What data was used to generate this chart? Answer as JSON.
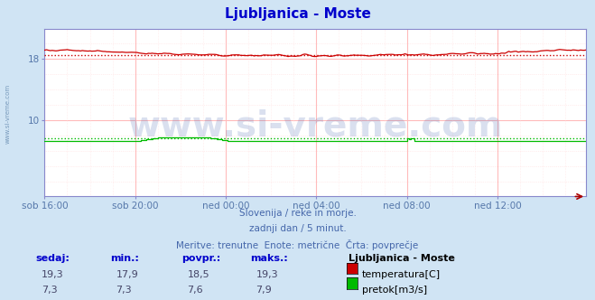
{
  "title": "Ljubljanica - Moste",
  "background_color": "#d0e4f4",
  "plot_bg_color": "#ffffff",
  "x_labels": [
    "sob 16:00",
    "sob 20:00",
    "ned 00:00",
    "ned 04:00",
    "ned 08:00",
    "ned 12:00"
  ],
  "x_tick_positions": [
    0,
    48,
    96,
    144,
    192,
    240
  ],
  "n_points": 288,
  "ylim_bottom": 0,
  "ylim_top": 22,
  "ytick_vals": [
    10,
    18
  ],
  "temp_min": 17.9,
  "temp_max": 19.3,
  "temp_avg": 18.5,
  "temp_current": 19.3,
  "flow_min": 7.3,
  "flow_max": 7.9,
  "flow_avg": 7.6,
  "flow_current": 7.3,
  "temp_color": "#cc0000",
  "flow_color": "#00bb00",
  "dotted_temp_color": "#cc0000",
  "dotted_flow_color": "#00bb00",
  "grid_major_color": "#ffbbbb",
  "grid_minor_color": "#ffdddd",
  "spine_color": "#8888cc",
  "watermark_text": "www.si-vreme.com",
  "watermark_color": "#3355aa",
  "watermark_alpha": 0.18,
  "watermark_fontsize": 28,
  "left_label_color": "#5577aa",
  "left_label_text": "www.si-vreme.com",
  "subtitle1": "Slovenija / reke in morje.",
  "subtitle2": "zadnji dan / 5 minut.",
  "subtitle3": "Meritve: trenutne  Enote: metrične  Črta: povprečje",
  "subtitle_color": "#4466aa",
  "subtitle_fontsize": 7.5,
  "legend_title": "Ljubljanica - Moste",
  "label_temp": "temperatura[C]",
  "label_flow": "pretok[m3/s]",
  "col_sedaj": "sedaj:",
  "col_min": "min.:",
  "col_povpr": "povpr.:",
  "col_maks": "maks.:",
  "table_header_color": "#0000cc",
  "table_value_color": "#444466",
  "title_color": "#0000cc",
  "title_fontsize": 11,
  "tick_fontsize": 7.5,
  "tick_color": "#5577aa"
}
